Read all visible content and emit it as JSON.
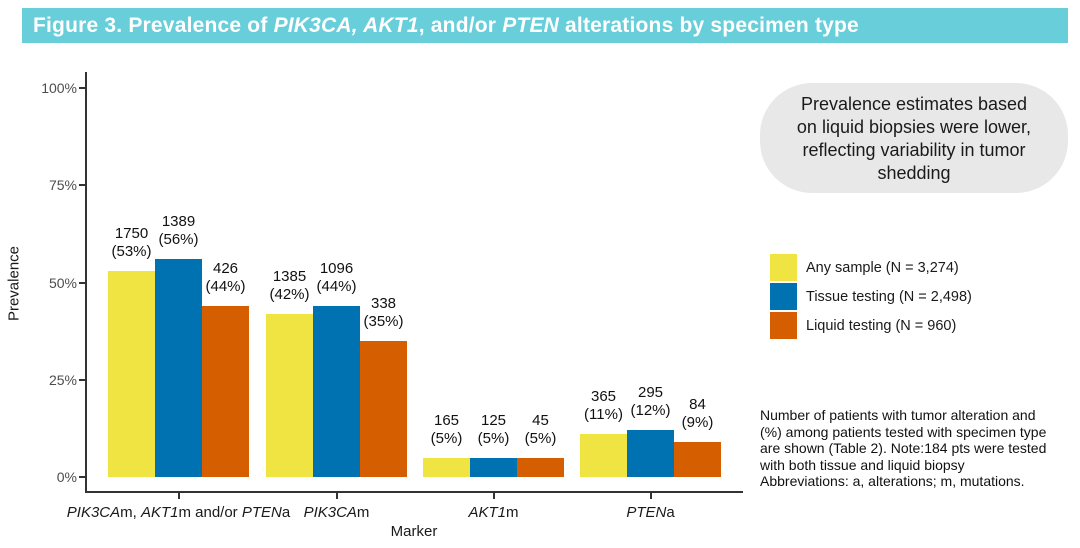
{
  "banner": {
    "bg_color": "#68CEDA",
    "text_color": "#FFFFFF",
    "title_segments": [
      {
        "t": "Figure 3. Prevalence of ",
        "i": false
      },
      {
        "t": "PIK3CA, AKT1",
        "i": true
      },
      {
        "t": ", and/or ",
        "i": false
      },
      {
        "t": "PTEN",
        "i": true
      },
      {
        "t": " alterations by specimen type",
        "i": false
      }
    ]
  },
  "chart_data": {
    "type": "bar",
    "title": "",
    "xlabel": "Marker",
    "ylabel": "Prevalence",
    "ylim": [
      0,
      100
    ],
    "ytick_values": [
      0,
      25,
      50,
      75,
      100
    ],
    "ytick_labels": [
      "0%",
      "25%",
      "50%",
      "75%",
      "100%"
    ],
    "grid": false,
    "legend_position": "right",
    "categories": [
      {
        "segments": [
          {
            "t": "PIK3CA",
            "i": true
          },
          {
            "t": "m, ",
            "i": false
          },
          {
            "t": "AKT1",
            "i": true
          },
          {
            "t": "m and/or ",
            "i": false
          },
          {
            "t": "PTEN",
            "i": true
          },
          {
            "t": "a",
            "i": false
          }
        ]
      },
      {
        "segments": [
          {
            "t": "PIK3CA",
            "i": true
          },
          {
            "t": "m",
            "i": false
          }
        ]
      },
      {
        "segments": [
          {
            "t": "AKT1",
            "i": true
          },
          {
            "t": "m",
            "i": false
          }
        ]
      },
      {
        "segments": [
          {
            "t": "PTEN",
            "i": true
          },
          {
            "t": "a",
            "i": false
          }
        ]
      }
    ],
    "series": [
      {
        "name": "Any sample (N = 3,274)",
        "color": "#F0E442",
        "percent": [
          53,
          42,
          5,
          11
        ],
        "count": [
          1750,
          1385,
          165,
          365
        ]
      },
      {
        "name": "Tissue testing (N = 2,498)",
        "color": "#0072B2",
        "percent": [
          56,
          44,
          5,
          12
        ],
        "count": [
          1389,
          1096,
          125,
          295
        ]
      },
      {
        "name": "Liquid testing (N = 960)",
        "color": "#D55E00",
        "percent": [
          44,
          35,
          5,
          9
        ],
        "count": [
          426,
          338,
          45,
          84
        ]
      }
    ]
  },
  "callout": {
    "bg_color": "#E8E8E8",
    "lines": [
      "Prevalence estimates based",
      "on liquid biopsies were lower,",
      "reflecting variability in tumor",
      "shedding"
    ]
  },
  "footnote": {
    "lines": [
      "Number of patients with tumor alteration and",
      "(%) among patients tested with specimen type",
      "are shown (Table 2). Note:184 pts were tested",
      "with both tissue and liquid biopsy",
      "Abbreviations: a, alterations; m, mutations."
    ]
  }
}
